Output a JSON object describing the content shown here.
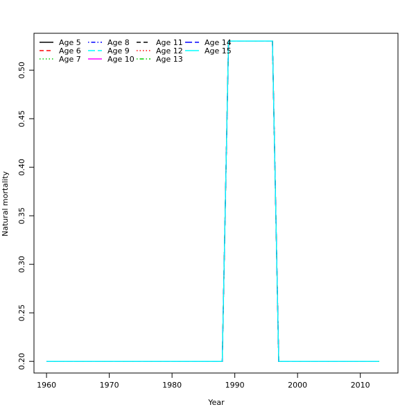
{
  "chart_data": {
    "type": "line",
    "title": "",
    "xlabel": "Year",
    "ylabel": "Natural mortality",
    "xlim": [
      1958,
      2016
    ],
    "ylim": [
      0.188,
      0.538
    ],
    "x_ticks": [
      1960,
      1970,
      1980,
      1990,
      2000,
      2010
    ],
    "y_ticks": [
      0.2,
      0.25,
      0.3,
      0.35,
      0.4,
      0.45,
      0.5
    ],
    "y_tick_labels": [
      "0.20",
      "0.25",
      "0.30",
      "0.35",
      "0.40",
      "0.45",
      "0.50"
    ],
    "grid": false,
    "legend_position": "top-left",
    "x": [
      1960,
      1988,
      1989,
      1996,
      1997,
      2013
    ],
    "series": [
      {
        "name": "Age 5",
        "color": "#000000",
        "dash": "solid",
        "values": [
          0.2,
          0.2,
          0.53,
          0.53,
          0.2,
          0.2
        ]
      },
      {
        "name": "Age 6",
        "color": "#ff0000",
        "dash": "dashed",
        "values": [
          0.2,
          0.2,
          0.53,
          0.53,
          0.2,
          0.2
        ]
      },
      {
        "name": "Age 7",
        "color": "#00cd00",
        "dash": "dotted",
        "values": [
          0.2,
          0.2,
          0.53,
          0.53,
          0.2,
          0.2
        ]
      },
      {
        "name": "Age 8",
        "color": "#0000ff",
        "dash": "dotdash",
        "values": [
          0.2,
          0.2,
          0.53,
          0.53,
          0.2,
          0.2
        ]
      },
      {
        "name": "Age 9",
        "color": "#00ffff",
        "dash": "longdash",
        "values": [
          0.2,
          0.2,
          0.53,
          0.53,
          0.2,
          0.2
        ]
      },
      {
        "name": "Age 10",
        "color": "#ff00ff",
        "dash": "solid",
        "values": [
          0.2,
          0.2,
          0.53,
          0.53,
          0.2,
          0.2
        ]
      },
      {
        "name": "Age 11",
        "color": "#000000",
        "dash": "dashed",
        "values": [
          0.2,
          0.2,
          0.53,
          0.53,
          0.2,
          0.2
        ]
      },
      {
        "name": "Age 12",
        "color": "#ff0000",
        "dash": "dotted",
        "values": [
          0.2,
          0.2,
          0.53,
          0.53,
          0.2,
          0.2
        ]
      },
      {
        "name": "Age 13",
        "color": "#00cd00",
        "dash": "dotdash",
        "values": [
          0.2,
          0.2,
          0.53,
          0.53,
          0.2,
          0.2
        ]
      },
      {
        "name": "Age 14",
        "color": "#0000ff",
        "dash": "longdash",
        "values": [
          0.2,
          0.2,
          0.53,
          0.53,
          0.2,
          0.2
        ]
      },
      {
        "name": "Age 15",
        "color": "#00ffff",
        "dash": "solid",
        "values": [
          0.2,
          0.2,
          0.53,
          0.53,
          0.2,
          0.2
        ]
      }
    ]
  }
}
